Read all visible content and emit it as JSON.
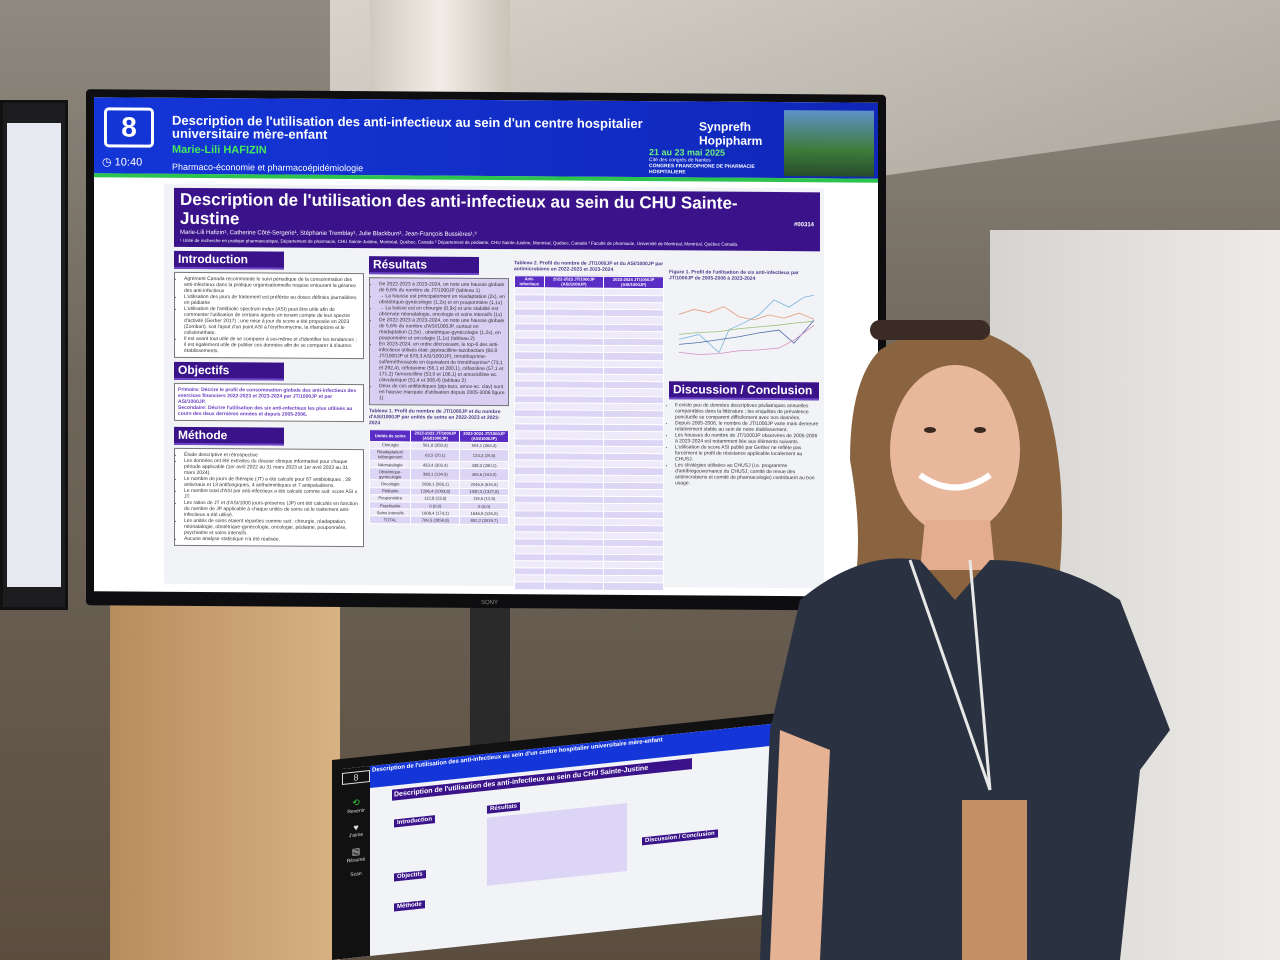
{
  "banner": {
    "session_number": "8",
    "time": "10:40",
    "title": "Description de l'utilisation des anti-infectieux au sein d'un centre hospitalier universitaire mère-enfant",
    "author": "Marie-Lili HAFIZIN",
    "theme": "Pharmaco-économie et pharmacoépidémiologie",
    "logos": "Synprefh  Hopipharm",
    "dates": "21 au 23 mai 2025",
    "venue": "Cité des congrès de Nantes",
    "congress": "CONGRES FRANCOPHONE DE PHARMACIE HOSPITALIERE"
  },
  "poster": {
    "title": "Description de l'utilisation des anti-infectieux au sein du CHU Sainte-Justine",
    "authors": "Marie-Lili Hafizin¹, Catherine Côté-Sergerie¹, Stéphanie Tremblay¹, Julie Blackburn², Jean-François Bussières¹,³",
    "affiliations": "¹ Unité de recherche en pratique pharmaceutique, Département de pharmacie, CHU Sainte-Justine, Montréal, Québec, Canada ² Département de pédiatrie, CHU Sainte-Justine, Montréal, Québec, Canada ³ Faculté de pharmacie, Université de Montréal, Montréal, Québec Canada.",
    "poster_id": "#00314",
    "introduction": {
      "heading": "Introduction",
      "bullets": [
        "Agrément Canada recommande le suivi périodique de la consommation des anti-infectieux dans la pratique organisationnelle requise entourant la gérance des anti-infectieux",
        "L'utilisation des jours de traitement est préférée au doses définies journalières en pédiatrie",
        "L'utilisation de l'antibiotic spectrum index (ASI) peut être utile afin de commenter l'utilisation de certains agents en tenant compte de leur spectre d'activité (Gerber 2017) ; une mise à jour du score a été proposée en 2023 (Zombori), soit l'ajout d'un point ASI à l'érythromycine, la rifampicine et le colistiméthate.",
        "Il est avant tout utile de se comparer à soi-même et d'identifier les tendances ; il est également utile de publier ces données afin de se comparer à d'autres établissements."
      ]
    },
    "objectifs": {
      "heading": "Objectifs",
      "primary": "Primaire: Décrire le profil de consommation globale des anti-infectieux des exercices financiers 2022-2023 et 2023-2024 par JT/1000JP et par ASI/1000JP.",
      "secondary": "Secondaire: Décrire l'utilisation des six anti-infectieux les plus utilisés au cours des deux dernières années et depuis 2005-2006."
    },
    "methode": {
      "heading": "Méthode",
      "bullets": [
        "Étude descriptive et rétrospective",
        "Les données ont été extraites du dossier clinique informatisé pour chaque période applicable (1er avril 2022 au 31 mars 2023 et 1er avril 2023 au 31 mars 2024).",
        "Le nombre de jours de thérapie (JT) a été calculé pour 67 antibiotiques , 28 antiviraux et 13 antifongiques, 4 anthelmintiques et 7 antipaludéens.",
        "Le nombre total d'ASI par anti-infectieux a été calculé comme suit: score ASI x JT.",
        "Les ratios de JT et d'ASI/1000 jours-présence (JP) ont été calculés en fonction du nombre de JP applicable à chaque unités de soins où le traitement anti-infectieux a été utilisé.",
        "Les unités de soins étaient réparties comme suit : chirurgie, réadaptation, néonatalogie, obstétrique-gynécologie, oncologie, pédiatrie, pouponnière, psychiatrie et soins intensifs.",
        "Aucune analyse statistique n'a été réalisée."
      ]
    },
    "resultats": {
      "heading": "Résultats",
      "bullets": [
        "De 2022-2023 à 2023-2024, on note une hausse globale de 6,6% du nombre de JT/1000JP (tableau 1)",
        "→ La hausse est principalement en réadaptation (2x), en obstétrique-gynécologie (1,2x) et en pouponnière (1,1x)",
        "→ La baisse est en chirurgie (0,9x) et une stabilité est observée néonatalogie, oncologie et soins intensifs (1x)",
        "De 2022-2023 à 2023-2024, on note une hausse globale de 5,6% du nombre d'ASI/1000JP, surtout en réadaptation (1,5x) , obstétrique-gynécologie (1,2x), en pouponnière et oncologie (1,1x) (tableau 2)",
        "En 2023-2024, en ordre décroissant, le top-6 des anti-infectieux utilisés était: pipéracilline-tazobactam (84,8 JT/1000JP et 678,3 ASI/1000JP), triméthoprime-sulfaméthoxazole en équivalent de triméthoprime* (73,1 et 292,4), céfotaxime (56,1 et 280,1), céfazoline (57,1 et 171,2) l'amoxicilline (53,0 et 106,1) et amoxicilline-ac. clavulanique (51,4 et 308,4) (tableau 2)",
        "Deux de ces antibiotiques (pip-tazo, amox-ac. clav) sont en hausse marquée d'utilisation depuis 2005-2006 figure 1)"
      ]
    },
    "table1": {
      "caption": "Tableau 1. Profil du nombre de JT/1000JP et du nombre d'ASI/1000JP par unités de soins en 2022-2023 et 2023-2024",
      "headers": [
        "Unités de soins",
        "2022-2023 JT/1000JP (ASI/1000JP)",
        "2023-2024 JT/1000JP (ASI/1000JP)"
      ],
      "rows": [
        [
          "Chirurgie",
          "561,8 (359,3)",
          "504,1 (364,4)"
        ],
        [
          "Réadaptation/ hébergement",
          "63,5 (20,1)",
          "124,3 (25,6)"
        ],
        [
          "Néonatalogie",
          "453,4 (303,4)",
          "438,3 (280,1)"
        ],
        [
          "Obstétrique-gynécologie",
          "398,1 (134,5)",
          "463,6 (163,0)"
        ],
        [
          "Oncologie",
          "2089,1 (565,1)",
          "2046,9 (616,5)"
        ],
        [
          "Pédiatrie",
          "1296,4 (1093,8)",
          "1330,3 (1327,8)"
        ],
        [
          "Pouponnière",
          "112,8 (13,5)",
          "119,6 (12,5)"
        ],
        [
          "Psychiatrie",
          "0 (0,0)",
          "0 (0,0)"
        ],
        [
          "Soins intensifs",
          "1608,4 (174,1)",
          "1646,9 (126,0)"
        ],
        [
          "TOTAL",
          "799,5 (2859,8)",
          "852,2 (3019,7)"
        ]
      ]
    },
    "table2": {
      "caption": "Tableau 2. Profil du nombre de JT/1000JP et du ASI/1000JP par antimicrobiens en 2022-2023 et 2023-2024",
      "headers": [
        "Anti-infectieux",
        "2022-2023 JT/1000JP (ASI/1000JP)",
        "2023-2024 JT/1000JP (ASI/1000JP)"
      ]
    },
    "figure1": {
      "caption": "Figure 1. Profil de l'utilisation de six anti-infectieux par JT/1000JP de 2005-2006 à 2023-2024"
    },
    "discussion": {
      "heading": "Discussion / Conclusion",
      "bullets": [
        "Il existe peu de données descriptives pédiatriques annuelles comparables dans la littérature ; les enquêtes de prévalence ponctuelle se comparent difficilement avec nos données.",
        "Depuis 2005-2006, le nombre de JT/1000JP varie mais demeure relativement stable au sein de notre établissement.",
        "Les hausses du nombre de JT/1000JP observées de 2005-2006 à 2023-2024 est notamment liée aux éléments suivants.",
        "L'utilisation du score ASI publié par Gerber ne reflète pas forcément le profil de résistance applicable localement au CHUSJ.",
        "Les stratégies utilisées au CHUSJ (i.e. programme d'antibiogouvernance du CHUSJ, comité de revue des antimicrobiens et comité de pharmacologie) contribuent au bon usage."
      ]
    }
  },
  "tablet": {
    "session_number": "8",
    "title": "Description de l'utilisation des anti-infectieux au sein du CHU Sainte-Justine",
    "side_labels": [
      "Revenir",
      "J'aime",
      "Résumé",
      "Scan"
    ],
    "headings": [
      "Introduction",
      "Résultats",
      "Objectifs",
      "Méthode",
      "Discussion / Conclusion"
    ]
  },
  "monitor_brand": "SONY",
  "colors": {
    "banner_blue": "#1436d8",
    "accent_green": "#2dc34f",
    "poster_purple": "#3a138a"
  }
}
